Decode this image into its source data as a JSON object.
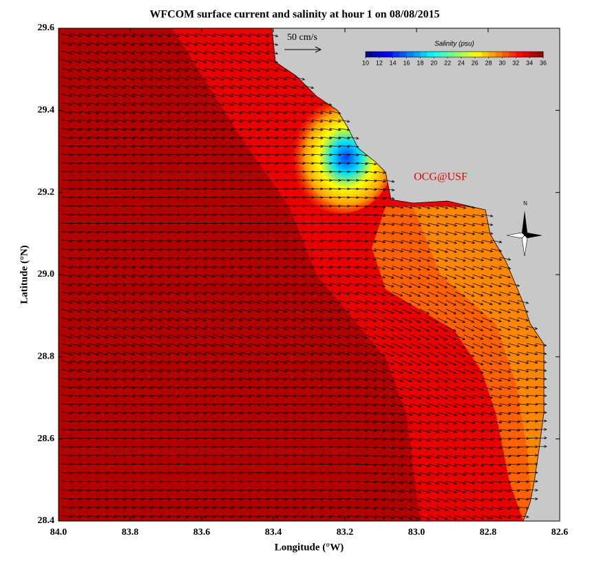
{
  "title": "WFCOM surface current and salinity at hour 1 on 08/08/2015",
  "x_axis": {
    "label": "Longitude (°W)",
    "lim": [
      84.0,
      82.6
    ],
    "ticks": [
      {
        "value": 84.0,
        "label": "84.0"
      },
      83.8,
      83.6,
      83.4,
      83.2,
      {
        "value": 83.0,
        "label": "83.0"
      },
      82.8,
      82.6
    ]
  },
  "y_axis": {
    "label": "Latitude (°N)",
    "lim": [
      28.4,
      29.6
    ],
    "ticks": [
      28.4,
      28.6,
      28.8,
      {
        "value": 29.0,
        "label": "29.0"
      },
      29.2,
      29.4,
      29.6
    ]
  },
  "scale_arrow": "50 cm/s",
  "colorbar": {
    "title": "Salinity (psu)",
    "lim": [
      10,
      36
    ],
    "ticks": [
      10,
      12,
      14,
      16,
      18,
      20,
      22,
      24,
      26,
      28,
      30,
      32,
      34,
      36
    ]
  },
  "credit": "OCG@USF",
  "compass": "N"
}
